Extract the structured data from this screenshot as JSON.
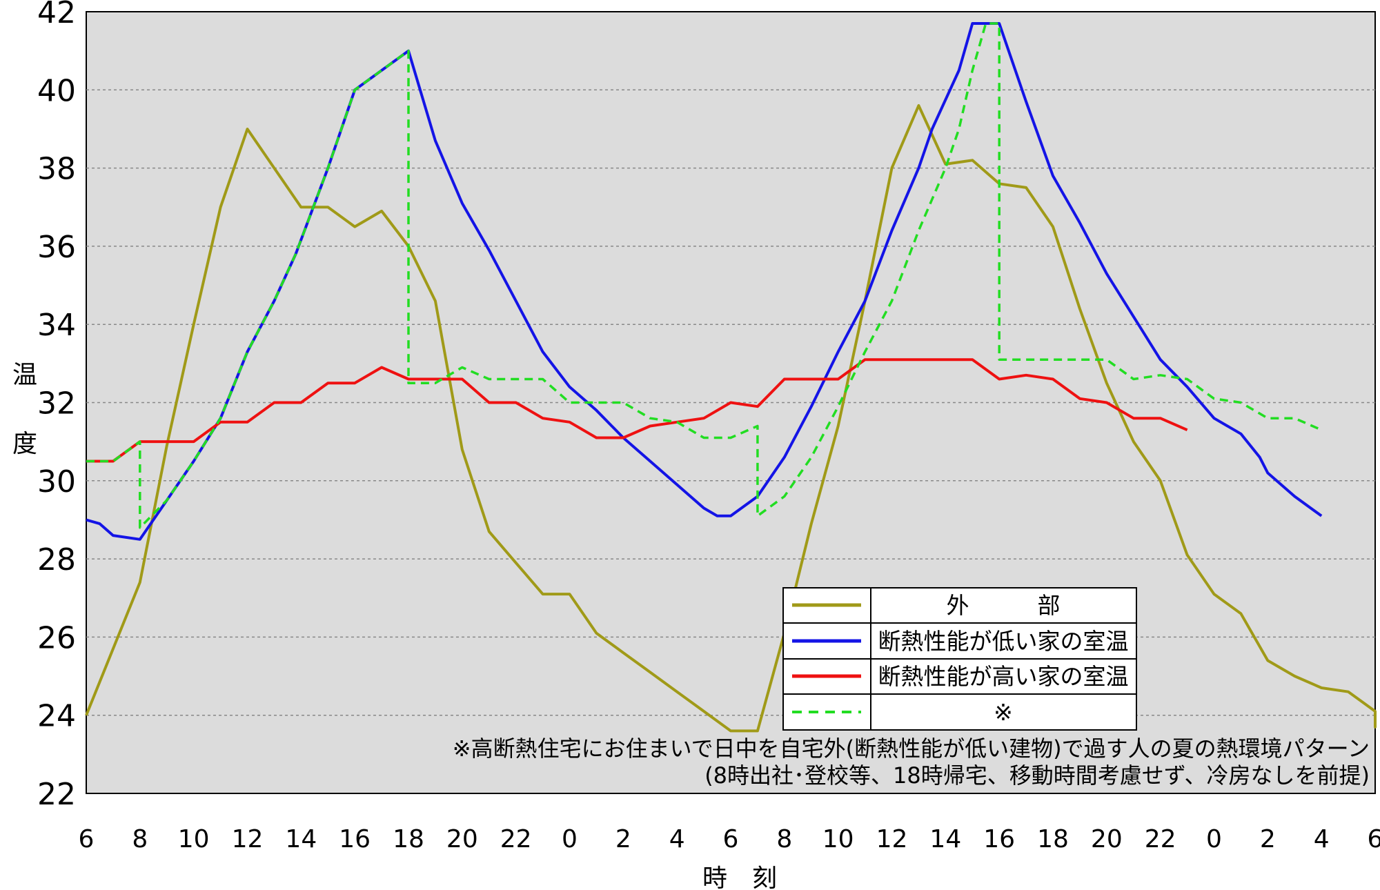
{
  "chart_data": {
    "type": "line",
    "xlabel": "時　刻",
    "ylabel": "温度",
    "ylim": [
      22,
      42
    ],
    "y_ticks": [
      "22",
      "24",
      "26",
      "28",
      "30",
      "32",
      "34",
      "36",
      "38",
      "40",
      "42"
    ],
    "x_ticks": [
      "6",
      "8",
      "10",
      "12",
      "14",
      "16",
      "18",
      "20",
      "22",
      "0",
      "2",
      "4",
      "6",
      "8",
      "10",
      "12",
      "14",
      "16",
      "18",
      "20",
      "22",
      "0",
      "2",
      "4",
      "6"
    ],
    "x_range_hours": [
      0,
      48
    ],
    "grid": "horizontal dotted",
    "series": [
      {
        "name": "外　　　部",
        "color": "#a09a18",
        "style": "solid",
        "points": [
          [
            0,
            24.0
          ],
          [
            1,
            25.7
          ],
          [
            2,
            27.4
          ],
          [
            3,
            30.9
          ],
          [
            4,
            34.0
          ],
          [
            5,
            37.0
          ],
          [
            6,
            39.0
          ],
          [
            7,
            38.0
          ],
          [
            8,
            37.0
          ],
          [
            9,
            37.0
          ],
          [
            10,
            36.5
          ],
          [
            11,
            36.9
          ],
          [
            12,
            36.0
          ],
          [
            13,
            34.6
          ],
          [
            14,
            30.8
          ],
          [
            15,
            28.7
          ],
          [
            16,
            27.9
          ],
          [
            17,
            27.1
          ],
          [
            18,
            27.1
          ],
          [
            19,
            26.1
          ],
          [
            20,
            25.6
          ],
          [
            21,
            25.1
          ],
          [
            22,
            24.6
          ],
          [
            23,
            24.1
          ],
          [
            24,
            23.6
          ],
          [
            25,
            23.6
          ],
          [
            26,
            26.1
          ],
          [
            27,
            28.9
          ],
          [
            28,
            31.4
          ],
          [
            29,
            34.6
          ],
          [
            30,
            38.0
          ],
          [
            31,
            39.6
          ],
          [
            32,
            38.1
          ],
          [
            33,
            38.2
          ],
          [
            34,
            37.6
          ],
          [
            35,
            37.5
          ],
          [
            36,
            36.5
          ],
          [
            37,
            34.4
          ],
          [
            38,
            32.5
          ],
          [
            39,
            31.0
          ],
          [
            40,
            30.0
          ],
          [
            41,
            28.1
          ],
          [
            42,
            27.1
          ],
          [
            43,
            26.6
          ],
          [
            44,
            25.4
          ],
          [
            45,
            25.0
          ],
          [
            46,
            24.7
          ],
          [
            47,
            24.6
          ],
          [
            48,
            24.1
          ],
          [
            49,
            24.1
          ],
          [
            50,
            23.7
          ],
          [
            51,
            24.1
          ]
        ]
      },
      {
        "name": "断熱性能が低い家の室温",
        "color": "#1414e6",
        "style": "solid",
        "points": [
          [
            0,
            29.0
          ],
          [
            0.5,
            28.9
          ],
          [
            1,
            28.6
          ],
          [
            2,
            28.5
          ],
          [
            3,
            29.5
          ],
          [
            4,
            30.5
          ],
          [
            5,
            31.6
          ],
          [
            6,
            33.3
          ],
          [
            7,
            34.6
          ],
          [
            7.8,
            35.8
          ],
          [
            9,
            38.0
          ],
          [
            10,
            40.0
          ],
          [
            11,
            40.5
          ],
          [
            12,
            41.0
          ],
          [
            13,
            38.7
          ],
          [
            14,
            37.1
          ],
          [
            15,
            35.9
          ],
          [
            16,
            34.6
          ],
          [
            17,
            33.3
          ],
          [
            18,
            32.4
          ],
          [
            19,
            31.8
          ],
          [
            20,
            31.1
          ],
          [
            21,
            30.5
          ],
          [
            22,
            29.9
          ],
          [
            23,
            29.3
          ],
          [
            23.5,
            29.1
          ],
          [
            24,
            29.1
          ],
          [
            25,
            29.6
          ],
          [
            26,
            30.6
          ],
          [
            27,
            31.9
          ],
          [
            28,
            33.3
          ],
          [
            29,
            34.6
          ],
          [
            30,
            36.4
          ],
          [
            31,
            38.0
          ],
          [
            31.5,
            39.0
          ],
          [
            32.5,
            40.5
          ],
          [
            33,
            41.7
          ],
          [
            34,
            41.7
          ],
          [
            35,
            39.7
          ],
          [
            36,
            37.8
          ],
          [
            37,
            36.6
          ],
          [
            38,
            35.3
          ],
          [
            39,
            34.2
          ],
          [
            40,
            33.1
          ],
          [
            41,
            32.4
          ],
          [
            42,
            31.6
          ],
          [
            43,
            31.2
          ],
          [
            43.7,
            30.6
          ],
          [
            44,
            30.2
          ],
          [
            45,
            29.6
          ],
          [
            46,
            29.1
          ]
        ]
      },
      {
        "name": "断熱性能が高い家の室温",
        "color": "#ee1111",
        "style": "solid",
        "points": [
          [
            0,
            30.5
          ],
          [
            1,
            30.5
          ],
          [
            2,
            31.0
          ],
          [
            3,
            31.0
          ],
          [
            4,
            31.0
          ],
          [
            5,
            31.5
          ],
          [
            6,
            31.5
          ],
          [
            7,
            32.0
          ],
          [
            8,
            32.0
          ],
          [
            9,
            32.5
          ],
          [
            10,
            32.5
          ],
          [
            11,
            32.9
          ],
          [
            12,
            32.6
          ],
          [
            13,
            32.6
          ],
          [
            14,
            32.6
          ],
          [
            15,
            32.0
          ],
          [
            16,
            32.0
          ],
          [
            17,
            31.6
          ],
          [
            18,
            31.5
          ],
          [
            19,
            31.1
          ],
          [
            20,
            31.1
          ],
          [
            21,
            31.4
          ],
          [
            22,
            31.5
          ],
          [
            23,
            31.6
          ],
          [
            24,
            32.0
          ],
          [
            25,
            31.9
          ],
          [
            26,
            32.6
          ],
          [
            27,
            32.6
          ],
          [
            28,
            32.6
          ],
          [
            29,
            33.1
          ],
          [
            30,
            33.1
          ],
          [
            31,
            33.1
          ],
          [
            32,
            33.1
          ],
          [
            33,
            33.1
          ],
          [
            34,
            32.6
          ],
          [
            35,
            32.7
          ],
          [
            36,
            32.6
          ],
          [
            37,
            32.1
          ],
          [
            38,
            32.0
          ],
          [
            39,
            31.6
          ],
          [
            40,
            31.6
          ],
          [
            41,
            31.3
          ]
        ]
      },
      {
        "name": "※",
        "color": "#22dd22",
        "style": "dashed",
        "points": [
          [
            0,
            30.5
          ],
          [
            1,
            30.5
          ],
          [
            2,
            31.0
          ],
          [
            2,
            28.8
          ],
          [
            3,
            29.5
          ],
          [
            4,
            30.5
          ],
          [
            5,
            31.6
          ],
          [
            6,
            33.3
          ],
          [
            7,
            34.6
          ],
          [
            7.8,
            35.8
          ],
          [
            9,
            38.0
          ],
          [
            10,
            40.0
          ],
          [
            11,
            40.5
          ],
          [
            12,
            41.0
          ],
          [
            12,
            32.5
          ],
          [
            13,
            32.5
          ],
          [
            14,
            32.9
          ],
          [
            15,
            32.6
          ],
          [
            16,
            32.6
          ],
          [
            17,
            32.6
          ],
          [
            18,
            32.0
          ],
          [
            19,
            32.0
          ],
          [
            20,
            32.0
          ],
          [
            21,
            31.6
          ],
          [
            22,
            31.5
          ],
          [
            23,
            31.1
          ],
          [
            24,
            31.1
          ],
          [
            25,
            31.4
          ],
          [
            25,
            29.1
          ],
          [
            26,
            29.6
          ],
          [
            27,
            30.6
          ],
          [
            28,
            31.9
          ],
          [
            29,
            33.3
          ],
          [
            30,
            34.6
          ],
          [
            31,
            36.4
          ],
          [
            32,
            38.0
          ],
          [
            32.5,
            39.0
          ],
          [
            33,
            40.5
          ],
          [
            33.5,
            41.7
          ],
          [
            34,
            41.7
          ],
          [
            34,
            33.1
          ],
          [
            35,
            33.1
          ],
          [
            36,
            33.1
          ],
          [
            37,
            33.1
          ],
          [
            38,
            33.1
          ],
          [
            39,
            32.6
          ],
          [
            40,
            32.7
          ],
          [
            41,
            32.6
          ],
          [
            42,
            32.1
          ],
          [
            43,
            32.0
          ],
          [
            44,
            31.6
          ],
          [
            45,
            31.6
          ],
          [
            46,
            31.3
          ]
        ]
      }
    ],
    "legend": {
      "placement": "bottom-right",
      "entries": [
        "外　　　部",
        "断熱性能が低い家の室温",
        "断熱性能が高い家の室温",
        "※"
      ]
    },
    "annotations": [
      "※高断熱住宅にお住まいで日中を自宅外(断熱性能が低い建物)で過す人の夏の熱環境パターン",
      "(8時出社･登校等、18時帰宅、移動時間考慮せず、冷房なしを前提)"
    ]
  }
}
